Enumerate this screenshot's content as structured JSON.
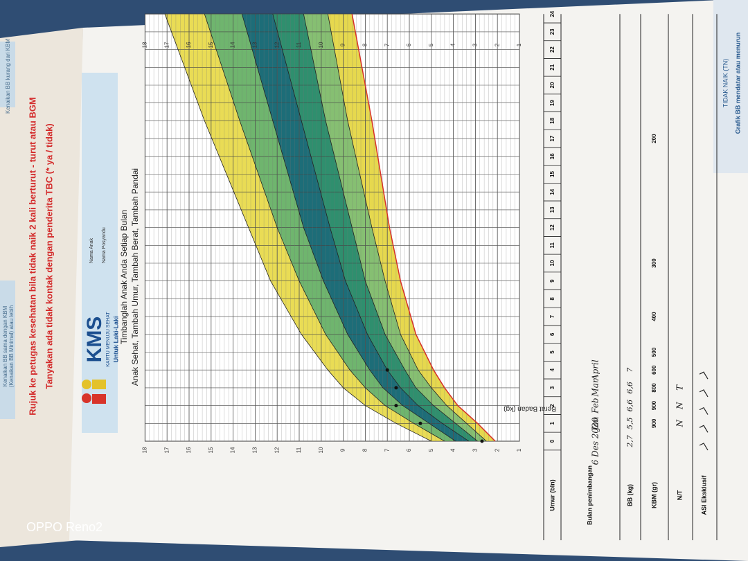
{
  "left_panel": {
    "notes": [
      "Kenaikan BB sama dengan KBM",
      "(Kenaikan BB Minimal) atau lebih",
      "Kenaikan BB kurang dari KBM"
    ],
    "referral": "Rujuk ke petugas kesehatan bila tidak naik 2 kali berturut - turut atau BGM",
    "tbc": "Tanyakan ada tidak kontak dengan penderita TBC (* ya / tidak)"
  },
  "header": {
    "logo": "KMS",
    "logo_sub": "KARTU MENUJU SEHAT",
    "gender": "Untuk Laki-Laki",
    "child_label": "Nama Anak",
    "posyandu_label": "Nama Posyandu",
    "slogan1": "Timbanglah Anak Anda Setiap Bulan",
    "slogan2": "Anak Sehat, Tambah Umur, Tambah Berat, Tambah Pandai"
  },
  "growth_chart": {
    "y_label": "Berat Badan (kg)",
    "weight_ticks": [
      1,
      2,
      3,
      4,
      5,
      6,
      7,
      8,
      9,
      10,
      11,
      12,
      13,
      14,
      15,
      16,
      17,
      18
    ],
    "ages": [
      0,
      1,
      2,
      3,
      4,
      5,
      6,
      7,
      8,
      9,
      10,
      11,
      12,
      13,
      14,
      15,
      16,
      17,
      18,
      19,
      20,
      21,
      22,
      23,
      24
    ],
    "band_ages": [
      0,
      1,
      2,
      3,
      4,
      6,
      9,
      12,
      18,
      24
    ],
    "band_lines": [
      [
        2.1,
        2.9,
        3.8,
        4.4,
        4.9,
        5.7,
        6.4,
        6.9,
        7.7,
        8.6
      ],
      [
        2.5,
        3.4,
        4.3,
        5.0,
        5.6,
        6.4,
        7.1,
        7.7,
        8.8,
        9.7
      ],
      [
        2.9,
        3.9,
        4.9,
        5.7,
        6.2,
        7.1,
        8.0,
        8.6,
        9.8,
        10.8
      ],
      [
        3.3,
        4.5,
        5.6,
        6.4,
        7.0,
        7.9,
        8.9,
        9.6,
        10.9,
        12.2
      ],
      [
        3.9,
        5.1,
        6.3,
        7.2,
        7.8,
        8.8,
        9.9,
        10.8,
        12.2,
        13.6
      ],
      [
        4.4,
        5.8,
        7.1,
        8.0,
        8.7,
        9.8,
        11.0,
        12.0,
        13.7,
        15.3
      ],
      [
        5.0,
        6.6,
        8.0,
        9.0,
        9.7,
        10.9,
        12.3,
        13.3,
        15.3,
        17.1
      ]
    ],
    "band_colors": [
      "#e6d84e",
      "#86bf72",
      "#2f8f6e",
      "#1d6d78",
      "#6fb56e",
      "#e9dc55"
    ],
    "plotted": {
      "ages": [
        0,
        1,
        2,
        3,
        4
      ],
      "weights": [
        2.7,
        5.5,
        6.6,
        6.6,
        7
      ]
    }
  },
  "table": {
    "row_labels": [
      "Umur (bln)",
      "Bulan penimbangan",
      "BB (kg)",
      "KBM (gr)",
      "N/T",
      "ASI Eksklusif"
    ],
    "months": [
      "6 Des 2020",
      "Jan",
      "Feb",
      "Mar",
      "April"
    ],
    "bb": [
      "2,7",
      "5,5",
      "6,6",
      "6,6",
      "7"
    ],
    "kbm": [
      "900",
      "900",
      "800",
      "600",
      "500",
      "400",
      "300",
      "200"
    ],
    "nt": [
      "N",
      "N",
      "T"
    ]
  },
  "side": {
    "title": "TIDAK NAIK (TN)",
    "text": "Grafik BB mendatar atau menurun"
  },
  "watermark": "OPPO Reno2"
}
